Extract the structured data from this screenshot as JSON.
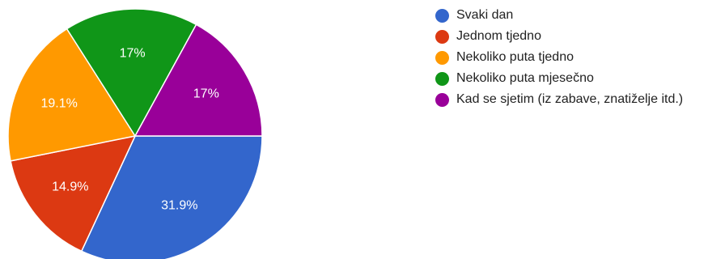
{
  "chart_data": {
    "type": "pie",
    "title": "",
    "start_angle_deg": 90,
    "direction": "clockwise",
    "legend_position": "right",
    "slices": [
      {
        "label": "Svaki dan",
        "value": 31.9,
        "display": "31.9%",
        "color": "#3366cc"
      },
      {
        "label": "Jednom tjedno",
        "value": 14.9,
        "display": "14.9%",
        "color": "#dc3912"
      },
      {
        "label": "Nekoliko puta tjedno",
        "value": 19.1,
        "display": "19.1%",
        "color": "#ff9900"
      },
      {
        "label": "Nekoliko puta mjesečno",
        "value": 17,
        "display": "17%",
        "color": "#109618"
      },
      {
        "label": "Kad se sjetim (iz zabave, znatiželje itd.)",
        "value": 17,
        "display": "17%",
        "color": "#990099"
      }
    ]
  }
}
